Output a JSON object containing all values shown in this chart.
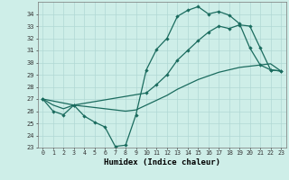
{
  "xlabel": "Humidex (Indice chaleur)",
  "bg_color": "#ceeee8",
  "line_color": "#1a6b5e",
  "grid_color": "#b0d8d4",
  "xlim": [
    -0.5,
    23.5
  ],
  "ylim": [
    23,
    35
  ],
  "yticks": [
    23,
    24,
    25,
    26,
    27,
    28,
    29,
    30,
    31,
    32,
    33,
    34
  ],
  "xticks": [
    0,
    1,
    2,
    3,
    4,
    5,
    6,
    7,
    8,
    9,
    10,
    11,
    12,
    13,
    14,
    15,
    16,
    17,
    18,
    19,
    20,
    21,
    22,
    23
  ],
  "line1_x": [
    0,
    1,
    2,
    3,
    4,
    5,
    6,
    7,
    8,
    9,
    10,
    11,
    12,
    13,
    14,
    15,
    16,
    17,
    18,
    19,
    20,
    21,
    22,
    23
  ],
  "line1_y": [
    27.0,
    26.0,
    25.7,
    26.5,
    25.6,
    25.1,
    24.7,
    23.1,
    23.2,
    25.7,
    29.4,
    31.1,
    32.0,
    33.8,
    34.3,
    34.6,
    34.0,
    34.2,
    33.9,
    33.2,
    31.2,
    29.8,
    29.4,
    29.3
  ],
  "line2_x": [
    0,
    3,
    10,
    11,
    12,
    13,
    14,
    15,
    16,
    17,
    18,
    19,
    20,
    21,
    22,
    23
  ],
  "line2_y": [
    27.0,
    26.5,
    27.5,
    28.2,
    29.0,
    30.2,
    31.0,
    31.8,
    32.5,
    33.0,
    32.8,
    33.1,
    33.0,
    31.2,
    29.4,
    29.3
  ],
  "line3_x": [
    0,
    1,
    2,
    3,
    4,
    5,
    6,
    7,
    8,
    9,
    10,
    11,
    12,
    13,
    14,
    15,
    16,
    17,
    18,
    19,
    20,
    21,
    22,
    23
  ],
  "line3_y": [
    27.0,
    26.5,
    26.2,
    26.5,
    26.4,
    26.3,
    26.2,
    26.1,
    26.0,
    26.1,
    26.5,
    26.9,
    27.3,
    27.8,
    28.2,
    28.6,
    28.9,
    29.2,
    29.4,
    29.6,
    29.7,
    29.8,
    29.9,
    29.3
  ]
}
